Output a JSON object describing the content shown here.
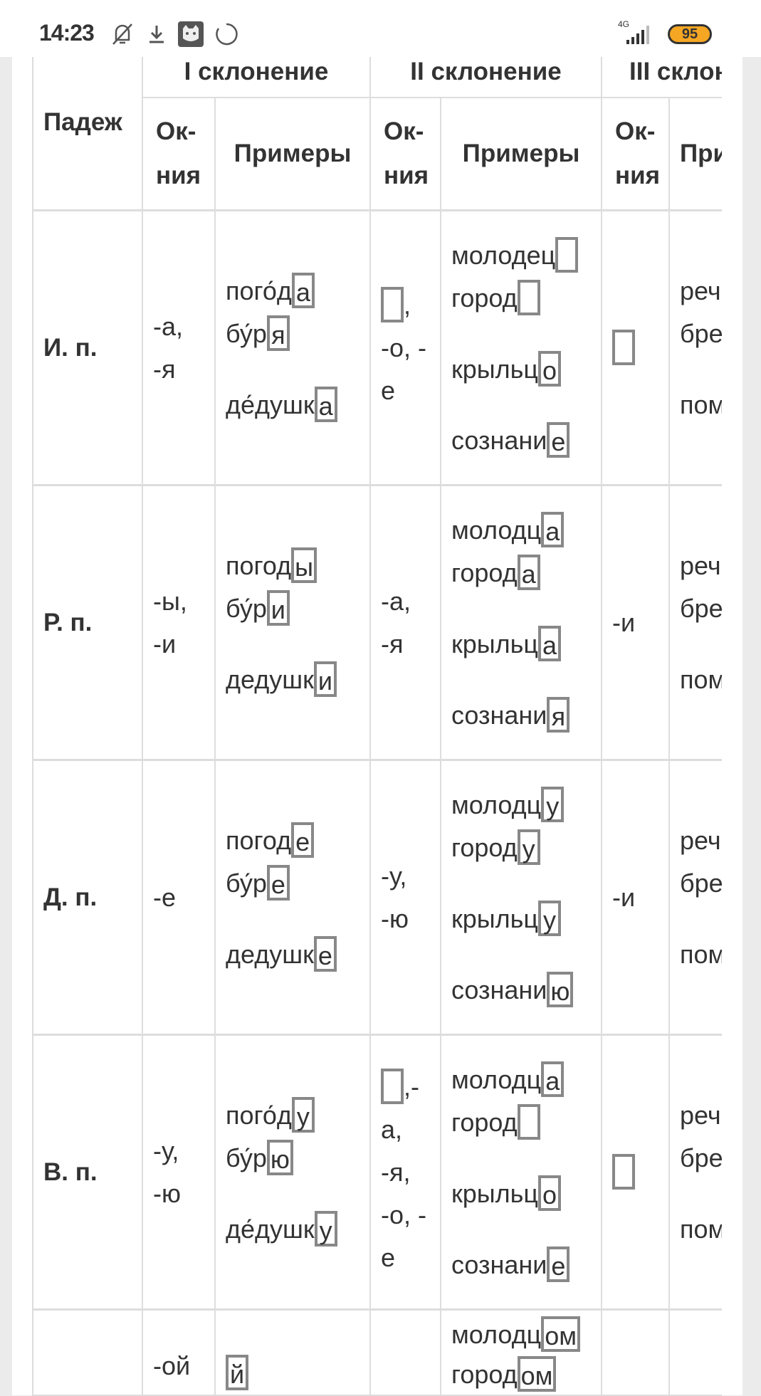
{
  "status_bar": {
    "time": "14:23",
    "icons": [
      "bell-off-icon",
      "download-icon",
      "cat-app-icon",
      "sync-icon"
    ],
    "network": "4G",
    "battery": "95",
    "battery_color": "#f5a623"
  },
  "table": {
    "header": {
      "case": "Падеж",
      "groups": [
        "I склонение",
        "II склонение",
        "III склон"
      ],
      "endings": "Ок-ния",
      "endings_lines": [
        "Ок-",
        "ния"
      ],
      "examples": "Примеры",
      "examples_clipped": "При"
    },
    "box_color": "#888888",
    "rows": [
      {
        "case": "И. п.",
        "end1": [
          [
            {
              "t": "-а,"
            }
          ],
          [
            {
              "t": "-я"
            }
          ]
        ],
        "ex1": [
          {
            "s": "пого́д",
            "e": "а"
          },
          {
            "s": "бу́р",
            "e": "я"
          },
          {
            "s": "де́душк",
            "e": "а",
            "gap": true
          }
        ],
        "end2": [
          [
            {
              "box": ""
            },
            {
              "t": ","
            }
          ],
          [
            {
              "t": "-о, -"
            }
          ],
          [
            {
              "t": "е"
            }
          ]
        ],
        "ex2": [
          {
            "s": "молодец",
            "e": ""
          },
          {
            "s": "город",
            "e": ""
          },
          {
            "s": "крыльц",
            "e": "о",
            "gap": true
          },
          {
            "s": "сознани",
            "e": "е",
            "gap": true
          }
        ],
        "end3": [
          [
            {
              "box": ""
            }
          ]
        ],
        "ex3": [
          {
            "s": "реч"
          },
          {
            "s": "бре"
          },
          {
            "s": "пом",
            "gap": true
          }
        ]
      },
      {
        "case": "Р. п.",
        "end1": [
          [
            {
              "t": "-ы,"
            }
          ],
          [
            {
              "t": "-и"
            }
          ]
        ],
        "ex1": [
          {
            "s": "погод",
            "e": "ы"
          },
          {
            "s": "бу́р",
            "e": "и"
          },
          {
            "s": "дедушк",
            "e": "и",
            "gap": true
          }
        ],
        "end2": [
          [
            {
              "t": "-а,"
            }
          ],
          [
            {
              "t": "-я"
            }
          ]
        ],
        "ex2": [
          {
            "s": "молодц",
            "e": "а"
          },
          {
            "s": "город",
            "e": "а"
          },
          {
            "s": "крыльц",
            "e": "а",
            "gap": true
          },
          {
            "s": "сознани",
            "e": "я",
            "gap": true
          }
        ],
        "end3": [
          [
            {
              "t": "-и"
            }
          ]
        ],
        "ex3": [
          {
            "s": "реч"
          },
          {
            "s": "бре"
          },
          {
            "s": "пом",
            "gap": true
          }
        ]
      },
      {
        "case": "Д. п.",
        "end1": [
          [
            {
              "t": "-е"
            }
          ]
        ],
        "ex1": [
          {
            "s": "погод",
            "e": "е"
          },
          {
            "s": "бу́р",
            "e": "е"
          },
          {
            "s": "дедушк",
            "e": "е",
            "gap": true
          }
        ],
        "end2": [
          [
            {
              "t": "-у,"
            }
          ],
          [
            {
              "t": "-ю"
            }
          ]
        ],
        "ex2": [
          {
            "s": "молодц",
            "e": "у"
          },
          {
            "s": "город",
            "e": "у"
          },
          {
            "s": "крыльц",
            "e": "у",
            "gap": true
          },
          {
            "s": "сознани",
            "e": "ю",
            "gap": true
          }
        ],
        "end3": [
          [
            {
              "t": "-и"
            }
          ]
        ],
        "ex3": [
          {
            "s": "реч"
          },
          {
            "s": "бре"
          },
          {
            "s": "пом",
            "gap": true
          }
        ]
      },
      {
        "case": "В. п.",
        "end1": [
          [
            {
              "t": "-у,"
            }
          ],
          [
            {
              "t": "-ю"
            }
          ]
        ],
        "ex1": [
          {
            "s": "пого́д",
            "e": "у"
          },
          {
            "s": "бу́р",
            "e": "ю"
          },
          {
            "s": "де́душк",
            "e": "у",
            "gap": true
          }
        ],
        "end2": [
          [
            {
              "box": ""
            },
            {
              "t": ",-"
            }
          ],
          [
            {
              "t": "а,"
            }
          ],
          [
            {
              "t": "-я,"
            }
          ],
          [
            {
              "t": "-о, -"
            }
          ],
          [
            {
              "t": "е"
            }
          ]
        ],
        "ex2": [
          {
            "s": "молодц",
            "e": "а"
          },
          {
            "s": "город",
            "e": ""
          },
          {
            "s": "крыльц",
            "e": "о",
            "gap": true
          },
          {
            "s": "сознани",
            "e": "е",
            "gap": true
          }
        ],
        "end3": [
          [
            {
              "box": ""
            }
          ]
        ],
        "ex3": [
          {
            "s": "реч"
          },
          {
            "s": "бре"
          },
          {
            "s": "пом",
            "gap": true
          }
        ]
      },
      {
        "case": "",
        "partial": true,
        "end1": [
          [
            {
              "t": "-ой"
            }
          ]
        ],
        "ex1": [
          {
            "s": "",
            "e": "й"
          }
        ],
        "end2": [],
        "ex2": [
          {
            "s": "молодц",
            "e": "ом"
          },
          {
            "s": "город",
            "e": "ом"
          }
        ],
        "end3": [],
        "ex3": []
      }
    ]
  }
}
